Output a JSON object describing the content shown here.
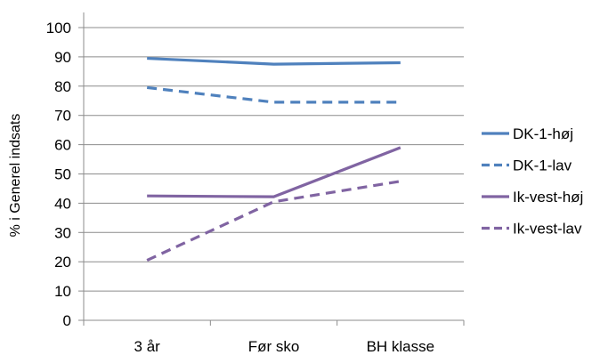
{
  "chart_data": {
    "type": "line",
    "title": "",
    "xlabel": "",
    "ylabel": "% i Generel indsats",
    "ylim": [
      0,
      100
    ],
    "yticks": [
      0,
      10,
      20,
      30,
      40,
      50,
      60,
      70,
      80,
      90,
      100
    ],
    "grid": "horizontal",
    "legend_position": "right",
    "categories": [
      "3 år",
      "Før sko",
      "BH klasse"
    ],
    "series": [
      {
        "name": "DK-1-høj",
        "values": [
          89.5,
          87.5,
          88
        ],
        "color": "#4f81bd",
        "style": "solid"
      },
      {
        "name": "DK-1-lav",
        "values": [
          79.5,
          74.5,
          74.5
        ],
        "color": "#4f81bd",
        "style": "dashed"
      },
      {
        "name": "Ik-vest-høj",
        "values": [
          42.5,
          42.2,
          59
        ],
        "color": "#8064a2",
        "style": "solid"
      },
      {
        "name": "Ik-vest-lav",
        "values": [
          20.5,
          40.5,
          47.5
        ],
        "color": "#8064a2",
        "style": "dashed"
      }
    ]
  }
}
